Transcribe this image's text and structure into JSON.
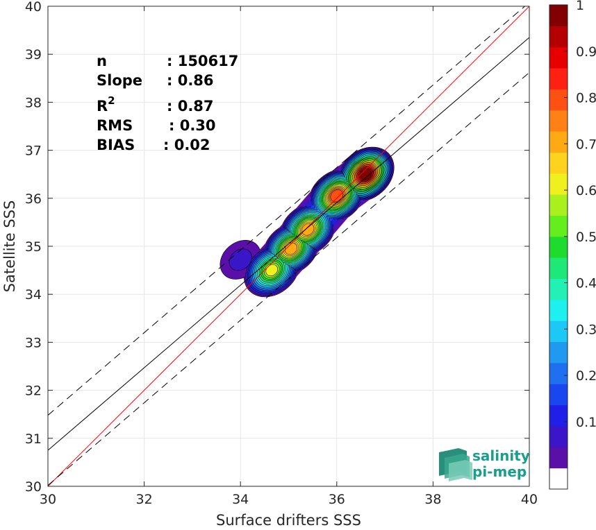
{
  "chart_data": {
    "type": "heatmap",
    "xlabel": "Surface drifters SSS",
    "ylabel": "Satellite SSS",
    "xlim": [
      30,
      40
    ],
    "ylim": [
      30,
      40
    ],
    "x_ticks": [
      30,
      32,
      34,
      36,
      38,
      40
    ],
    "y_ticks": [
      30,
      31,
      32,
      33,
      34,
      35,
      36,
      37,
      38,
      39,
      40
    ],
    "grid": true,
    "stats": [
      {
        "label": "n",
        "value": ": 150617"
      },
      {
        "label": "Slope",
        "value": ": 0.86"
      },
      {
        "label": "R",
        "sup": "2",
        "value": ": 0.87"
      },
      {
        "label": "RMS",
        "value": ": 0.30"
      },
      {
        "label": "BIAS",
        "value": ": 0.02"
      }
    ],
    "lines": [
      {
        "name": "1:1",
        "color": "#ff0000",
        "style": "solid",
        "slope": 1,
        "intercept": 0
      },
      {
        "name": "fit",
        "color": "#000000",
        "style": "solid",
        "slope": 0.86,
        "x0": 30,
        "y0": 30.75
      },
      {
        "name": "upper",
        "color": "#000000",
        "style": "dashed",
        "slope": 0.86,
        "x0": 30,
        "y0": 31.48
      },
      {
        "name": "lower",
        "color": "#000000",
        "style": "dashed",
        "slope": 0.86,
        "x0": 30,
        "y0": 30.02
      }
    ],
    "density_peaks": [
      {
        "x": 36.6,
        "y": 36.5,
        "value": 1.0
      },
      {
        "x": 36.0,
        "y": 36.05,
        "value": 0.85
      },
      {
        "x": 35.4,
        "y": 35.35,
        "value": 0.75
      },
      {
        "x": 35.05,
        "y": 34.95,
        "value": 0.75
      },
      {
        "x": 34.65,
        "y": 34.5,
        "value": 0.65
      },
      {
        "x": 34.0,
        "y": 34.72,
        "value": 0.12
      }
    ],
    "colorbar": {
      "ticks": [
        "0.1",
        "0.2",
        "0.3",
        "0.4",
        "0.5",
        "0.6",
        "0.7",
        "0.8",
        "0.9",
        "1"
      ],
      "colors": [
        "#ffffff",
        "#5a0fa8",
        "#3a16c8",
        "#1f1fe6",
        "#1a46f0",
        "#1f70f0",
        "#1f9af0",
        "#1ec8f6",
        "#1ef0f0",
        "#22f0b4",
        "#1ee878",
        "#1edc2d",
        "#64ee1e",
        "#aaf01e",
        "#f0f01e",
        "#ffd21e",
        "#ffaa14",
        "#ff8014",
        "#ff5014",
        "#ff2014",
        "#e60000",
        "#b40000",
        "#820000"
      ]
    },
    "logo": {
      "line1": "salinity",
      "line2": "pi-mep"
    }
  }
}
